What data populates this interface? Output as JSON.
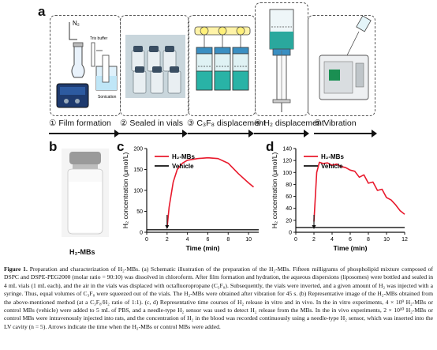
{
  "panels": {
    "a": "a",
    "b": "b",
    "c": "c",
    "d": "d"
  },
  "steps": [
    {
      "label": "① Film formation"
    },
    {
      "label": "② Sealed in vials"
    },
    {
      "label": "③ C₃F₈ displacement"
    },
    {
      "label": "④ H₂ displacement"
    },
    {
      "label": "⑤ Vibration"
    }
  ],
  "step1_annotations": {
    "gas": "N₂",
    "tris": "Tris buffer",
    "sonication": "Sonication"
  },
  "photo_label": "H₂-MBs",
  "charts_common": {
    "ylabel": "H₂ concentration (μmol/L)",
    "xlabel": "Time (min)",
    "series_names": [
      "H₂-MBs",
      "Vehicle"
    ],
    "colors": {
      "h2": "#e8192c",
      "vehicle": "#111111"
    }
  },
  "chart_data": [
    {
      "type": "line",
      "panel": "c",
      "xlim": [
        0,
        11
      ],
      "ylim": [
        0,
        200
      ],
      "xticks": [
        0,
        2,
        4,
        6,
        8,
        10
      ],
      "yticks": [
        0,
        50,
        100,
        150,
        200
      ],
      "series": [
        {
          "name": "H₂-MBs",
          "x": [
            2,
            2.2,
            2.6,
            3,
            3.5,
            4,
            5,
            6,
            7,
            8,
            9,
            10,
            10.5
          ],
          "y": [
            10,
            60,
            120,
            150,
            165,
            172,
            176,
            178,
            176,
            165,
            140,
            118,
            108
          ]
        },
        {
          "name": "Vehicle",
          "x": [
            0,
            11
          ],
          "y": [
            6,
            6
          ]
        }
      ],
      "annotations": [
        {
          "type": "arrow",
          "x": 2
        }
      ]
    },
    {
      "type": "line",
      "panel": "d",
      "xlim": [
        0,
        12
      ],
      "ylim": [
        0,
        140
      ],
      "xticks": [
        0,
        2,
        4,
        6,
        8,
        10,
        12
      ],
      "yticks": [
        0,
        20,
        40,
        60,
        80,
        100,
        120,
        140
      ],
      "series": [
        {
          "name": "H₂-MBs",
          "x": [
            2,
            2.3,
            2.6,
            3,
            3.5,
            4,
            4.5,
            5,
            5.5,
            6,
            6.5,
            7,
            7.5,
            8,
            8.5,
            9,
            9.5,
            10,
            10.5,
            11,
            11.5,
            12
          ],
          "y": [
            18,
            100,
            117,
            115,
            116,
            112,
            114,
            110,
            108,
            104,
            102,
            92,
            96,
            82,
            84,
            70,
            72,
            58,
            54,
            46,
            36,
            30
          ]
        },
        {
          "name": "Vehicle",
          "x": [
            0,
            12
          ],
          "y": [
            8,
            8
          ]
        }
      ],
      "annotations": [
        {
          "type": "arrow",
          "x": 2
        }
      ]
    }
  ],
  "caption": {
    "lead": "Figure 1.",
    "text": "Preparation and characterization of H₂-MBs. (a) Schematic illustration of the preparation of the H₂-MBs. Fifteen milligrams of phospholipid mixture composed of DSPC and DSPE-PEG2000 (molar ratio = 90:10) was dissolved in chloroform. After film formation and hydration, the aqueous dispersions (liposomes) were bottled and sealed in 4 mL vials (1 mL each), and the air in the vials was displaced with octafluoropropane (C₃F₈). Subsequently, the vials were inverted, and a given amount of H₂ was injected with a syringe. Thus, equal volumes of C₃F₈ were squeezed out of the vials. The H₂-MBs were obtained after vibration for 45 s. (b) Representative image of the H₂-MBs obtained from the above-mentioned method (at a C₃F₈/H₂ ratio of 1:1). (c, d) Representative time courses of H₂ release in vitro and in vivo. In the in vitro experiments, 4 × 10⁹ H₂-MBs or control MBs (vehicle) were added to 5 mL of PBS, and a needle-type H₂ sensor was used to detect H₂ release from the MBs. In the in vivo experiments, 2 × 10¹⁰ H₂-MBs or control MBs were intravenously injected into rats, and the concentration of H₂ in the blood was recorded continuously using a needle-type H₂ sensor, which was inserted into the LV cavity (n = 5). Arrows indicate the time when the H₂-MBs or control MBs were added."
  }
}
